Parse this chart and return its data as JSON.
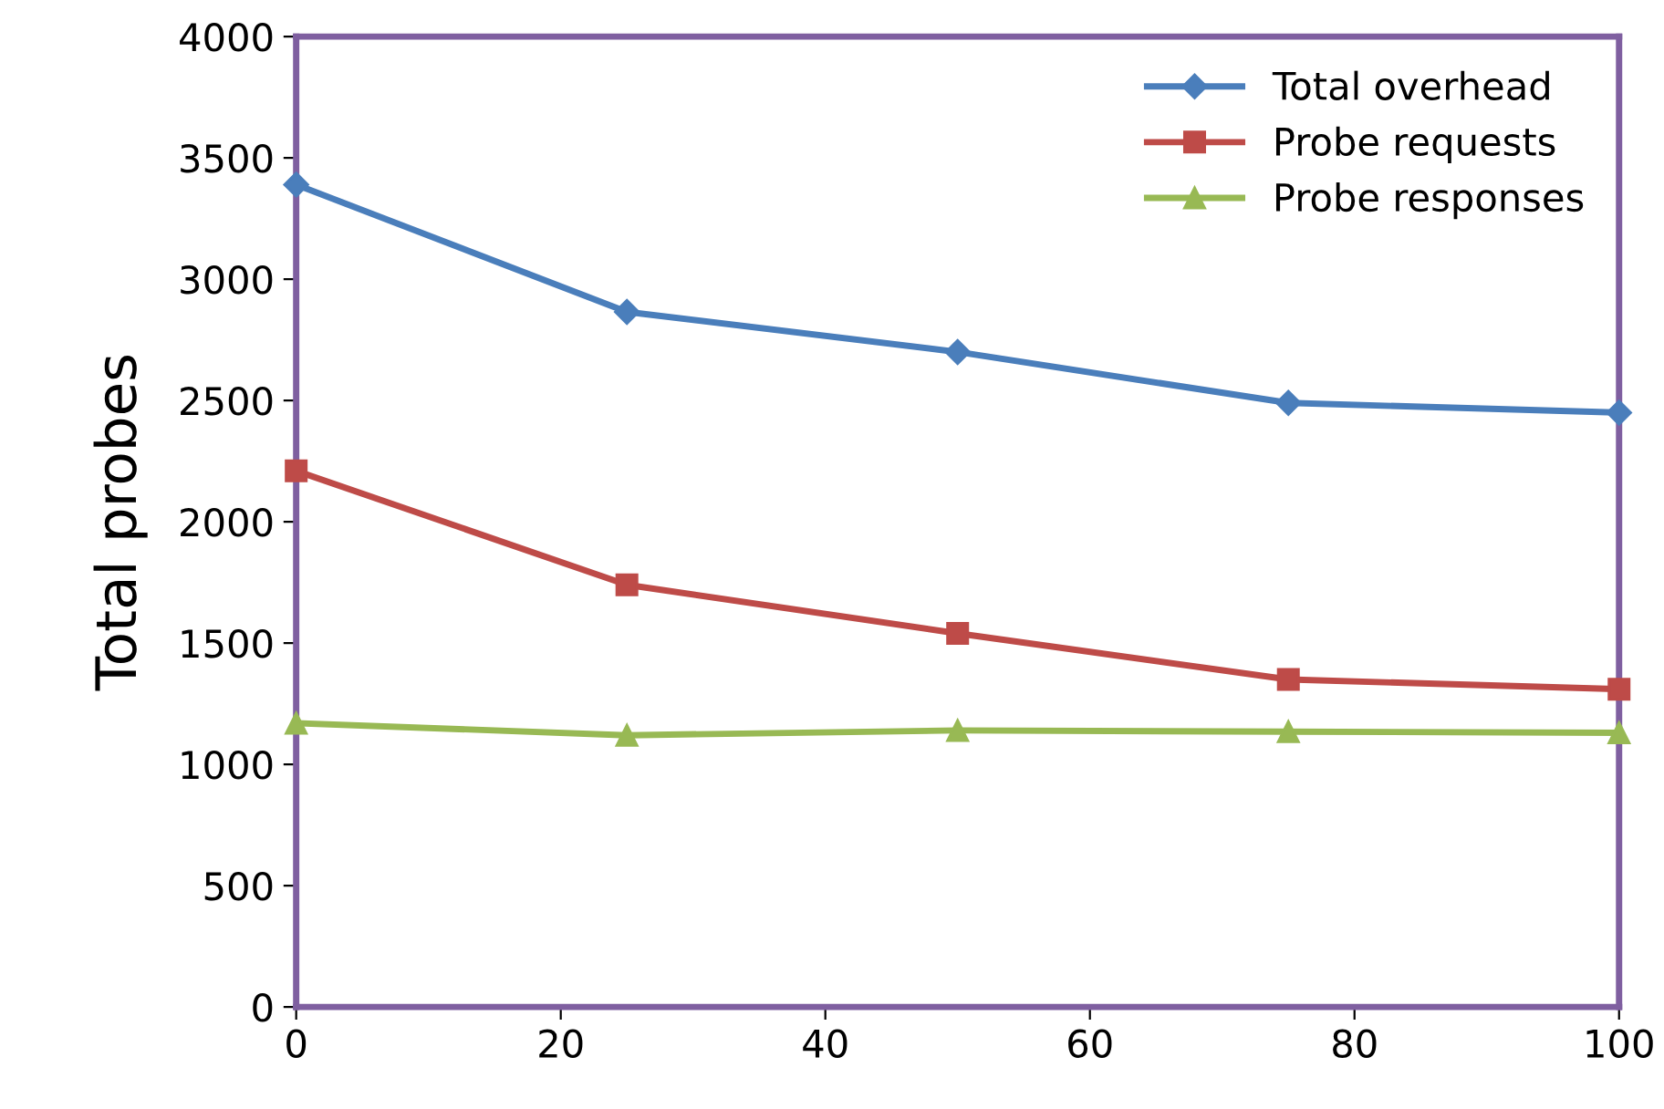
{
  "chart_data": {
    "type": "line",
    "ylabel": "Total probes",
    "x": [
      0,
      25,
      50,
      75,
      100
    ],
    "series": [
      {
        "name": "Total overhead",
        "color": "#4a7ebb",
        "marker": "diamond",
        "values": [
          3390,
          2865,
          2700,
          2490,
          2450
        ]
      },
      {
        "name": "Probe requests",
        "color": "#be4b48",
        "marker": "square",
        "values": [
          2210,
          1740,
          1540,
          1350,
          1310
        ]
      },
      {
        "name": "Probe responses",
        "color": "#98b954",
        "marker": "triangle",
        "values": [
          1170,
          1120,
          1140,
          1135,
          1130
        ]
      }
    ],
    "xlim": [
      0,
      100
    ],
    "xticks": [
      0,
      20,
      40,
      60,
      80,
      100
    ],
    "ylim": [
      0,
      4000
    ],
    "yticks": [
      0,
      500,
      1000,
      1500,
      2000,
      2500,
      3000,
      3500,
      4000
    ],
    "grid": false,
    "legend": "top right",
    "line_style": "solid"
  }
}
